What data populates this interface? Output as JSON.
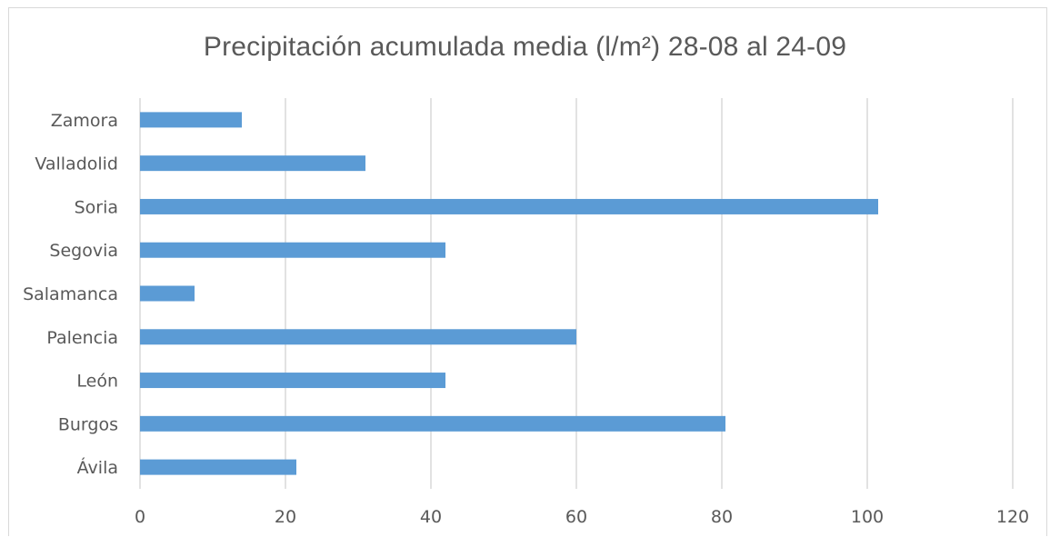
{
  "chart_data": {
    "type": "bar",
    "orientation": "horizontal",
    "title": "Precipitación acumulada media (l/m²) 28-08 al 24-09",
    "categories": [
      "Ávila",
      "Burgos",
      "León",
      "Palencia",
      "Salamanca",
      "Segovia",
      "Soria",
      "Valladolid",
      "Zamora"
    ],
    "values": [
      21.5,
      80.5,
      42,
      60,
      7.5,
      42,
      101.5,
      31,
      14
    ],
    "xlim": [
      0,
      120
    ],
    "xticks": [
      "0",
      "20",
      "40",
      "60",
      "80",
      "100",
      "120"
    ],
    "grid": true,
    "bar_color": "#5b9bd5",
    "grid_color": "#d9d9d9"
  }
}
